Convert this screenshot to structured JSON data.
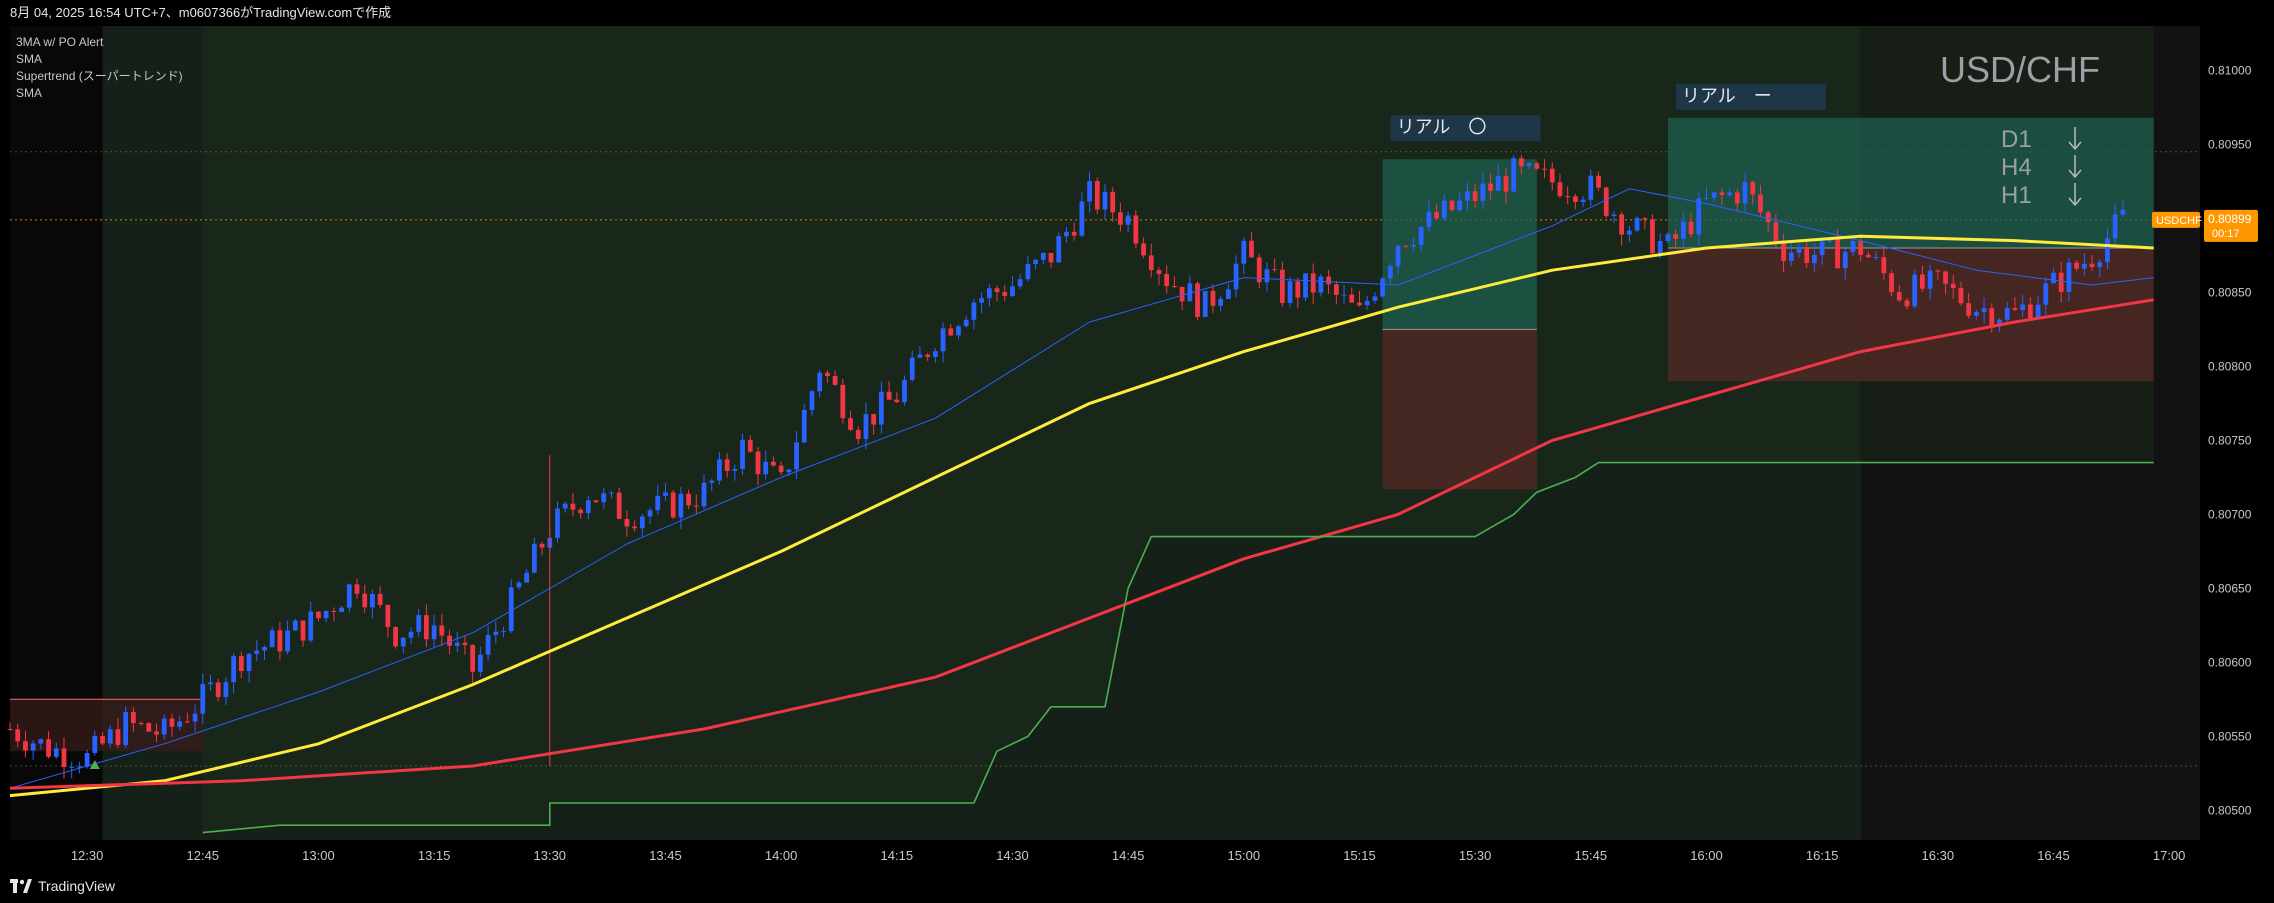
{
  "header": {
    "title": "8月 04, 2025 16:54 UTC+7、m0607366がTradingView.comで作成"
  },
  "indicators": [
    "3MA w/ PO Alert",
    "SMA",
    "Supertrend (スーパートレンド)",
    "SMA"
  ],
  "footer": {
    "brand": "TradingView"
  },
  "colors": {
    "background": "#0c0c0c",
    "up": "#2962ff",
    "down": "#f23645",
    "sma_fast": "#2962ff",
    "sma_mid": "#ffeb3b",
    "sma_slow": "#f23645",
    "supertrend": "#4caf50",
    "accent": "#ff9800"
  },
  "chart_data": {
    "type": "candlestick",
    "symbol": "USD/CHF",
    "timeframe_labels": [
      "D1",
      "H4",
      "H1"
    ],
    "price_tag": {
      "symbol": "USDCHF",
      "price": "0.80899",
      "countdown": "00:17"
    },
    "annotations": [
      {
        "text": "リアル　〇",
        "time": "15:24"
      },
      {
        "text": "リアル　ー",
        "time": "15:56"
      }
    ],
    "x_ticks": [
      "12:30",
      "12:45",
      "13:00",
      "13:15",
      "13:30",
      "13:45",
      "14:00",
      "14:15",
      "14:30",
      "14:45",
      "15:00",
      "15:15",
      "15:30",
      "15:45",
      "16:00",
      "16:15",
      "16:30",
      "16:45",
      "17:00"
    ],
    "y_ticks": [
      "0.81000",
      "0.80950",
      "0.80900",
      "0.80850",
      "0.80800",
      "0.80750",
      "0.80700",
      "0.80650",
      "0.80600",
      "0.80550",
      "0.80500"
    ],
    "ylim": [
      0.8048,
      0.8103
    ],
    "xlim": [
      "12:20",
      "17:04"
    ],
    "candle_interval_minutes": 1,
    "close_series": [
      [
        "12:20",
        0.80555
      ],
      [
        "12:25",
        0.80542
      ],
      [
        "12:30",
        0.80535
      ],
      [
        "12:35",
        0.80558
      ],
      [
        "12:40",
        0.80552
      ],
      [
        "12:45",
        0.80575
      ],
      [
        "12:50",
        0.80605
      ],
      [
        "12:55",
        0.80615
      ],
      [
        "13:00",
        0.8063
      ],
      [
        "13:05",
        0.80655
      ],
      [
        "13:10",
        0.8062
      ],
      [
        "13:15",
        0.80625
      ],
      [
        "13:20",
        0.80595
      ],
      [
        "13:25",
        0.8064
      ],
      [
        "13:30",
        0.8069
      ],
      [
        "13:35",
        0.80715
      ],
      [
        "13:40",
        0.807
      ],
      [
        "13:45",
        0.80705
      ],
      [
        "13:50",
        0.80715
      ],
      [
        "13:55",
        0.80745
      ],
      [
        "14:00",
        0.8072
      ],
      [
        "14:05",
        0.808
      ],
      [
        "14:10",
        0.8076
      ],
      [
        "14:15",
        0.8078
      ],
      [
        "14:20",
        0.8082
      ],
      [
        "14:25",
        0.80845
      ],
      [
        "14:30",
        0.80855
      ],
      [
        "14:35",
        0.80875
      ],
      [
        "14:40",
        0.80915
      ],
      [
        "14:45",
        0.809
      ],
      [
        "14:50",
        0.8086
      ],
      [
        "14:55",
        0.8084
      ],
      [
        "15:00",
        0.80875
      ],
      [
        "15:05",
        0.8085
      ],
      [
        "15:10",
        0.80855
      ],
      [
        "15:15",
        0.80835
      ],
      [
        "15:20",
        0.80885
      ],
      [
        "15:25",
        0.809
      ],
      [
        "15:30",
        0.80915
      ],
      [
        "15:35",
        0.8093
      ],
      [
        "15:40",
        0.80925
      ],
      [
        "15:45",
        0.8092
      ],
      [
        "15:50",
        0.80895
      ],
      [
        "15:55",
        0.8088
      ],
      [
        "16:00",
        0.8091
      ],
      [
        "16:05",
        0.8092
      ],
      [
        "16:10",
        0.8088
      ],
      [
        "16:15",
        0.80875
      ],
      [
        "16:20",
        0.8088
      ],
      [
        "16:25",
        0.8085
      ],
      [
        "16:30",
        0.80855
      ],
      [
        "16:35",
        0.8084
      ],
      [
        "16:40",
        0.80835
      ],
      [
        "16:45",
        0.80855
      ],
      [
        "16:50",
        0.80875
      ],
      [
        "16:54",
        0.80899
      ]
    ],
    "series": [
      {
        "name": "SMA fast",
        "color": "#2962ff",
        "points": [
          [
            "12:20",
            0.80515
          ],
          [
            "12:40",
            0.80545
          ],
          [
            "13:00",
            0.8058
          ],
          [
            "13:20",
            0.8062
          ],
          [
            "13:40",
            0.8068
          ],
          [
            "14:00",
            0.80725
          ],
          [
            "14:20",
            0.80765
          ],
          [
            "14:40",
            0.8083
          ],
          [
            "15:00",
            0.8086
          ],
          [
            "15:20",
            0.80855
          ],
          [
            "15:40",
            0.80895
          ],
          [
            "15:50",
            0.8092
          ],
          [
            "16:00",
            0.8091
          ],
          [
            "16:20",
            0.80885
          ],
          [
            "16:35",
            0.80865
          ],
          [
            "16:50",
            0.80855
          ],
          [
            "16:58",
            0.8086
          ]
        ]
      },
      {
        "name": "SMA mid",
        "color": "#ffeb3b",
        "points": [
          [
            "12:20",
            0.8051
          ],
          [
            "12:40",
            0.8052
          ],
          [
            "13:00",
            0.80545
          ],
          [
            "13:20",
            0.80585
          ],
          [
            "13:40",
            0.8063
          ],
          [
            "14:00",
            0.80675
          ],
          [
            "14:20",
            0.80725
          ],
          [
            "14:40",
            0.80775
          ],
          [
            "15:00",
            0.8081
          ],
          [
            "15:20",
            0.8084
          ],
          [
            "15:40",
            0.80865
          ],
          [
            "16:00",
            0.8088
          ],
          [
            "16:20",
            0.80888
          ],
          [
            "16:40",
            0.80885
          ],
          [
            "16:58",
            0.8088
          ]
        ]
      },
      {
        "name": "SMA slow",
        "color": "#f23645",
        "points": [
          [
            "12:20",
            0.80515
          ],
          [
            "12:50",
            0.8052
          ],
          [
            "13:20",
            0.8053
          ],
          [
            "13:50",
            0.80555
          ],
          [
            "14:20",
            0.8059
          ],
          [
            "14:40",
            0.8063
          ],
          [
            "15:00",
            0.8067
          ],
          [
            "15:20",
            0.807
          ],
          [
            "15:40",
            0.8075
          ],
          [
            "16:00",
            0.8078
          ],
          [
            "16:20",
            0.8081
          ],
          [
            "16:40",
            0.8083
          ],
          [
            "16:58",
            0.80845
          ]
        ]
      },
      {
        "name": "Supertrend",
        "color": "#4caf50",
        "points": [
          [
            "12:45",
            0.80485
          ],
          [
            "12:55",
            0.8049
          ],
          [
            "13:30",
            0.8049
          ],
          [
            "13:30",
            0.80505
          ],
          [
            "14:25",
            0.80505
          ],
          [
            "14:28",
            0.8054
          ],
          [
            "14:32",
            0.8055
          ],
          [
            "14:35",
            0.8057
          ],
          [
            "14:42",
            0.8057
          ],
          [
            "14:45",
            0.8065
          ],
          [
            "14:48",
            0.80685
          ],
          [
            "15:30",
            0.80685
          ],
          [
            "15:35",
            0.807
          ],
          [
            "15:38",
            0.80715
          ],
          [
            "15:43",
            0.80725
          ],
          [
            "15:46",
            0.80735
          ],
          [
            "16:58",
            0.80735
          ]
        ]
      }
    ],
    "positions": [
      {
        "label": "リアル　〇",
        "start": "15:18",
        "end": "15:38",
        "entry": 0.80825,
        "target": 0.8094,
        "stop": 0.80717
      },
      {
        "label": "リアル　ー",
        "start": "15:55",
        "end": "16:58",
        "entry": 0.8088,
        "target": 0.80968,
        "stop": 0.8079
      }
    ],
    "zones": [
      {
        "start": "12:20",
        "end": "12:45",
        "high": 0.80575,
        "low": 0.8054,
        "tone": "red"
      }
    ],
    "reference_lines": [
      {
        "price": 0.80945,
        "style": "dotted"
      },
      {
        "price": 0.80899,
        "style": "dotted"
      },
      {
        "price": 0.8053,
        "style": "dotted"
      }
    ]
  }
}
